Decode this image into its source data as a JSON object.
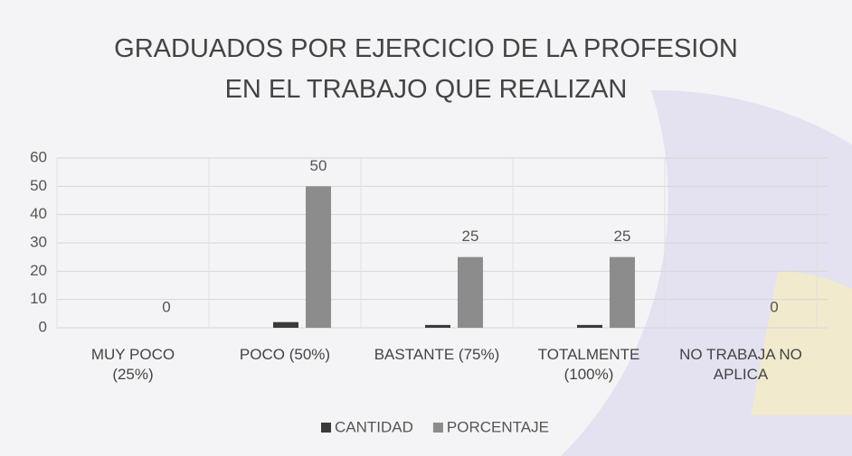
{
  "chart_data": {
    "type": "bar",
    "title": "GRADUADOS POR EJERCICIO DE LA PROFESION\nEN EL TRABAJO QUE REALIZAN",
    "categories": [
      "MUY POCO\n(25%)",
      "POCO  (50%)",
      "BASTANTE  (75%)",
      "TOTALMENTE\n(100%)",
      "NO TRABAJA NO\nAPLICA"
    ],
    "series": [
      {
        "name": "CANTIDAD",
        "color": "#3a3a3a",
        "values": [
          0,
          2,
          1,
          1,
          0
        ]
      },
      {
        "name": "PORCENTAJE",
        "color": "#8c8c8c",
        "values": [
          0,
          50,
          25,
          25,
          0
        ]
      }
    ],
    "ylim": [
      0,
      60
    ],
    "yticks": [
      0,
      10,
      20,
      30,
      40,
      50,
      60
    ],
    "grid": true,
    "legend": "bottom"
  }
}
